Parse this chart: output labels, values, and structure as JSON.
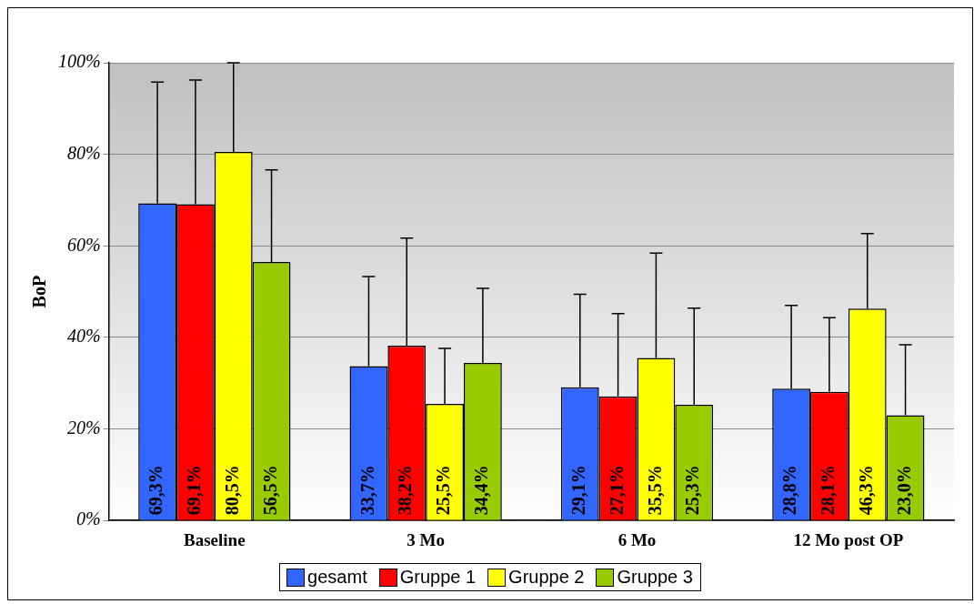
{
  "chart_data": {
    "type": "bar",
    "ylabel": "BoP",
    "categories": [
      "Baseline",
      "3 Mo",
      "6 Mo",
      "12 Mo post OP"
    ],
    "series": [
      {
        "name": "gesamt",
        "color": "#3366ff",
        "values": [
          69.3,
          33.7,
          29.1,
          28.8
        ],
        "errors": [
          [
            69.3,
            95.8
          ],
          [
            33.7,
            53.3
          ],
          [
            29.1,
            49.4
          ],
          [
            28.8,
            47.0
          ]
        ],
        "value_labels": [
          "69,3%",
          "33,7%",
          "29,1%",
          "28,8%"
        ]
      },
      {
        "name": "Gruppe 1",
        "color": "#ff0000",
        "values": [
          69.1,
          38.2,
          27.1,
          28.1
        ],
        "errors": [
          [
            69.1,
            96.2
          ],
          [
            38.2,
            61.7
          ],
          [
            27.1,
            45.2
          ],
          [
            28.1,
            44.3
          ]
        ],
        "value_labels": [
          "69,1%",
          "38,2%",
          "27,1%",
          "28,1%"
        ]
      },
      {
        "name": "Gruppe 2",
        "color": "#ffff00",
        "values": [
          80.5,
          25.5,
          35.5,
          46.3
        ],
        "errors": [
          [
            80.5,
            100
          ],
          [
            25.5,
            37.6
          ],
          [
            35.5,
            58.4
          ],
          [
            46.3,
            62.7
          ]
        ],
        "value_labels": [
          "80,5%",
          "25,5%",
          "35,5%",
          "46,3%"
        ]
      },
      {
        "name": "Gruppe 3",
        "color": "#99cc00",
        "values": [
          56.5,
          34.4,
          25.3,
          23.0
        ],
        "errors": [
          [
            56.5,
            76.6
          ],
          [
            34.4,
            50.7
          ],
          [
            25.3,
            46.4
          ],
          [
            23.0,
            38.4
          ]
        ],
        "value_labels": [
          "56,5%",
          "34,4%",
          "25,3%",
          "23,0%"
        ]
      }
    ],
    "ylim": [
      0,
      100
    ],
    "yticks": [
      {
        "value": 0,
        "label": "0%"
      },
      {
        "value": 20,
        "label": "20%"
      },
      {
        "value": 40,
        "label": "40%"
      },
      {
        "value": 60,
        "label": "60%"
      },
      {
        "value": 80,
        "label": "80%"
      },
      {
        "value": 100,
        "label": "100%"
      }
    ],
    "grid": "y",
    "legend": "bottom"
  }
}
